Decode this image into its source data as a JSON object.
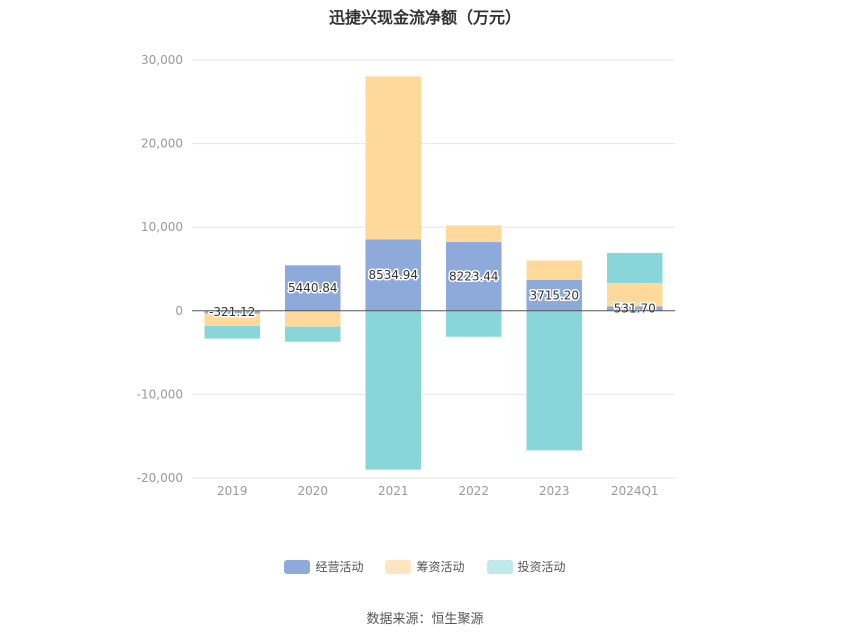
{
  "chart_data": {
    "type": "bar",
    "stacked": true,
    "title": "迅捷兴现金流净额（万元）",
    "categories": [
      "2019",
      "2020",
      "2021",
      "2022",
      "2023",
      "2024Q1"
    ],
    "ylim": [
      -20000,
      30000
    ],
    "yticks": [
      30000,
      20000,
      10000,
      0,
      -10000,
      -20000
    ],
    "ytick_labels": [
      "30,000",
      "20,000",
      "10,000",
      "0",
      "-10,000",
      "-20,000"
    ],
    "grid": true,
    "legend_position": "bottom",
    "series": [
      {
        "name": "经营活动",
        "color": "#8eaadb",
        "values": [
          -321.12,
          5440.84,
          8534.94,
          8223.44,
          3715.2,
          531.7
        ],
        "labels": [
          "-321.12",
          "5440.84",
          "8534.94",
          "8223.44",
          "3715.20",
          "531.70"
        ]
      },
      {
        "name": "筹资活动",
        "color": "#ffd99b",
        "values": [
          -1500,
          -1900,
          19500,
          2000,
          2300,
          2800
        ]
      },
      {
        "name": "投资活动",
        "color": "#88d6d9",
        "values": [
          -1500,
          -1800,
          -19000,
          -3100,
          -16700,
          3600
        ]
      }
    ],
    "legend_colors": [
      "#8eaadb",
      "#ffe6c0",
      "#bfe9ea"
    ]
  },
  "source": "数据来源：恒生聚源"
}
